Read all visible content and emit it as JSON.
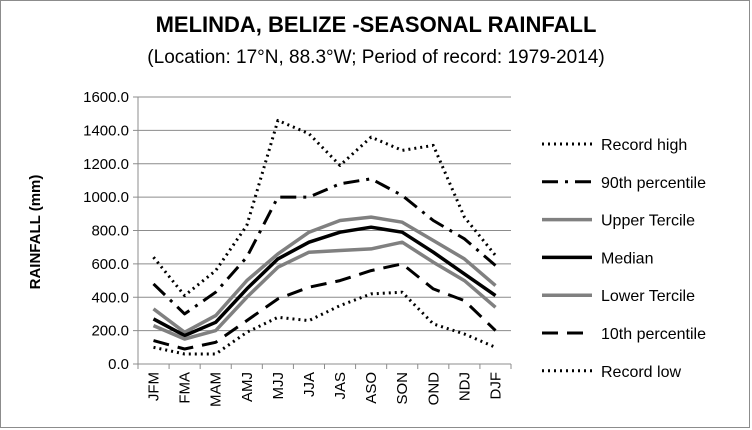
{
  "chart_data": {
    "type": "line",
    "title": "MELINDA,  BELIZE  -SEASONAL RAINFALL",
    "subtitle": "(Location: 17°N, 88.3°W; Period of record: 1979-2014)",
    "xlabel": "",
    "ylabel": "RAINFALL (mm)",
    "ylim": [
      0,
      1600
    ],
    "yticks": [
      "0.0",
      "200.0",
      "400.0",
      "600.0",
      "800.0",
      "1000.0",
      "1200.0",
      "1400.0",
      "1600.0"
    ],
    "grid": true,
    "legend_position": "right",
    "categories": [
      "JFM",
      "FMA",
      "MAM",
      "AMJ",
      "MJJ",
      "JJA",
      "JAS",
      "ASO",
      "SON",
      "OND",
      "NDJ",
      "DJF"
    ],
    "series": [
      {
        "name": "Record high",
        "style": "dotted",
        "color": "#000000",
        "values": [
          640,
          410,
          560,
          830,
          1460,
          1380,
          1190,
          1360,
          1280,
          1310,
          880,
          650
        ]
      },
      {
        "name": "90th percentile",
        "style": "dashdot",
        "color": "#000000",
        "values": [
          480,
          300,
          430,
          640,
          1000,
          1000,
          1080,
          1110,
          1010,
          860,
          750,
          590
        ]
      },
      {
        "name": "Upper Tercile",
        "style": "solid",
        "color": "#808080",
        "values": [
          330,
          190,
          290,
          500,
          660,
          790,
          860,
          880,
          850,
          740,
          630,
          470
        ]
      },
      {
        "name": "Median",
        "style": "solid",
        "color": "#000000",
        "values": [
          270,
          170,
          250,
          450,
          630,
          730,
          790,
          820,
          790,
          670,
          540,
          410
        ]
      },
      {
        "name": "Lower Tercile",
        "style": "solid",
        "color": "#808080",
        "values": [
          230,
          150,
          200,
          400,
          580,
          670,
          680,
          690,
          730,
          610,
          500,
          340
        ]
      },
      {
        "name": "10th percentile",
        "style": "dashed",
        "color": "#000000",
        "values": [
          140,
          90,
          130,
          260,
          390,
          460,
          500,
          560,
          600,
          450,
          380,
          200
        ]
      },
      {
        "name": "Record low",
        "style": "dotted",
        "color": "#000000",
        "values": [
          100,
          60,
          60,
          190,
          280,
          260,
          350,
          420,
          430,
          240,
          180,
          100
        ]
      }
    ]
  }
}
